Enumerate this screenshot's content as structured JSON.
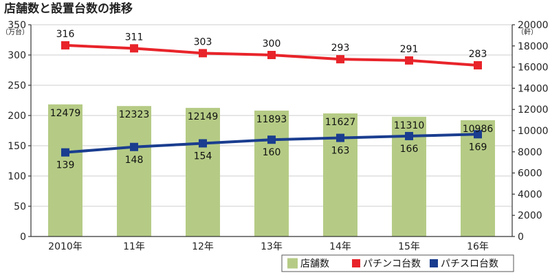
{
  "chart_data": {
    "type": "bar+line",
    "title": "店舗数と設置台数の推移",
    "categories": [
      "2010年",
      "11年",
      "12年",
      "13年",
      "14年",
      "15年",
      "16年"
    ],
    "left_axis": {
      "unit": "（万台）",
      "range": [
        0,
        350
      ],
      "ticks": [
        0,
        50,
        100,
        150,
        200,
        250,
        300,
        350
      ]
    },
    "right_axis": {
      "unit": "（軒）",
      "range": [
        0,
        20000
      ],
      "ticks": [
        0,
        2000,
        4000,
        6000,
        8000,
        10000,
        12000,
        14000,
        16000,
        18000,
        20000
      ]
    },
    "grid": true,
    "legend_position": "bottom-right",
    "series": [
      {
        "name": "店舗数",
        "kind": "bar",
        "axis": "right",
        "color": "#b5cb85",
        "values": [
          12479,
          12323,
          12149,
          11893,
          11627,
          11310,
          10986
        ]
      },
      {
        "name": "パチンコ台数",
        "kind": "line",
        "axis": "left",
        "color": "#e8242a",
        "values": [
          316,
          311,
          303,
          300,
          293,
          291,
          283
        ]
      },
      {
        "name": "パチスロ台数",
        "kind": "line",
        "axis": "left",
        "color": "#1a3d8f",
        "values": [
          139,
          148,
          154,
          160,
          163,
          166,
          169
        ]
      }
    ]
  }
}
